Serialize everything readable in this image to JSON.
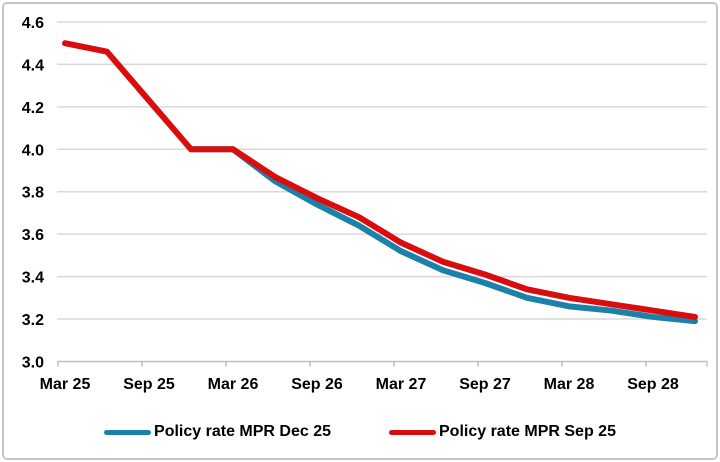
{
  "chart_data": {
    "type": "line",
    "categories": [
      "Mar 25",
      "Jun 25",
      "Sep 25",
      "Dec 25",
      "Mar 26",
      "Jun 26",
      "Sep 26",
      "Dec 26",
      "Mar 27",
      "Jun 27",
      "Sep 27",
      "Dec 27",
      "Mar 28",
      "Jun 28",
      "Sep 28",
      "Dec 28"
    ],
    "x_tick_labels": [
      "Mar 25",
      "Sep 25",
      "Mar 26",
      "Sep 26",
      "Mar 27",
      "Sep 27",
      "Mar 28",
      "Sep 28"
    ],
    "series": [
      {
        "name": "Policy rate MPR Dec 25",
        "color": "#1B81A8",
        "values": [
          null,
          null,
          null,
          4.0,
          4.0,
          3.85,
          3.74,
          3.64,
          3.52,
          3.43,
          3.37,
          3.3,
          3.26,
          3.24,
          3.21,
          3.19
        ]
      },
      {
        "name": "Policy rate MPR Sep 25",
        "color": "#D90D0D",
        "values": [
          4.5,
          4.46,
          4.23,
          4.0,
          4.0,
          3.87,
          3.77,
          3.68,
          3.56,
          3.47,
          3.41,
          3.34,
          3.3,
          3.27,
          3.24,
          3.21
        ]
      }
    ],
    "title": "",
    "xlabel": "",
    "ylabel": "",
    "ylim": [
      3.0,
      4.6
    ],
    "y_ticks": [
      3.0,
      3.2,
      3.4,
      3.6,
      3.8,
      4.0,
      4.2,
      4.4,
      4.6
    ],
    "grid": true,
    "legend_position": "bottom"
  },
  "style": {
    "gridline_color": "#D9D9D9",
    "axis_color": "#BFBFBF",
    "text_color": "#000000",
    "border_color": "#C6C6C6",
    "background": "#FFFFFF"
  }
}
